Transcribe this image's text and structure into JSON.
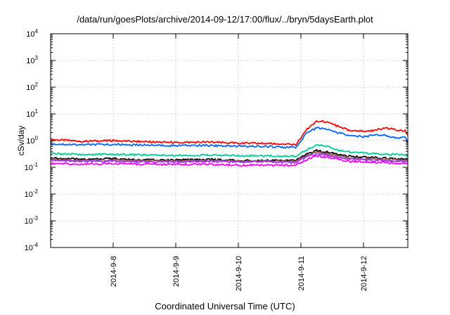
{
  "chart_data": {
    "type": "line",
    "title": "/data/run/goesPlots/archive/2014-09-12/17:00/flux/../bryn/5daysEarth.plot",
    "xlabel": "Coordinated Universal Time (UTC)",
    "ylabel": "cSv/day",
    "yscale": "log",
    "ylim": [
      0.0001,
      10000
    ],
    "y_ticks": [
      {
        "base": "10",
        "exp": "4",
        "value": 10000
      },
      {
        "base": "10",
        "exp": "3",
        "value": 1000
      },
      {
        "base": "10",
        "exp": "2",
        "value": 100
      },
      {
        "base": "10",
        "exp": "1",
        "value": 10
      },
      {
        "base": "10",
        "exp": "0",
        "value": 1
      },
      {
        "base": "10",
        "exp": "-1",
        "value": 0.1
      },
      {
        "base": "10",
        "exp": "-2",
        "value": 0.01
      },
      {
        "base": "10",
        "exp": "-3",
        "value": 0.001
      },
      {
        "base": "10",
        "exp": "-4",
        "value": 0.0001
      }
    ],
    "xlim": [
      "2014-09-07 00:00",
      "2014-09-12 17:00"
    ],
    "x_ticks": [
      {
        "label": "2014-9-8",
        "value": "2014-09-08 00:00"
      },
      {
        "label": "2014-9-9",
        "value": "2014-09-09 00:00"
      },
      {
        "label": "2014-9-10",
        "value": "2014-09-10 00:00"
      },
      {
        "label": "2014-9-11",
        "value": "2014-09-11 00:00"
      },
      {
        "label": "2014-9-12",
        "value": "2014-09-12 00:00"
      }
    ],
    "grid": true,
    "legend": "none",
    "x": [
      "2014-09-07 00:00",
      "2014-09-07 12:00",
      "2014-09-08 00:00",
      "2014-09-08 12:00",
      "2014-09-09 00:00",
      "2014-09-09 12:00",
      "2014-09-10 00:00",
      "2014-09-10 12:00",
      "2014-09-10 22:00",
      "2014-09-11 02:00",
      "2014-09-11 06:00",
      "2014-09-11 10:00",
      "2014-09-11 14:00",
      "2014-09-11 18:00",
      "2014-09-12 00:00",
      "2014-09-12 04:00",
      "2014-09-12 08:00",
      "2014-09-12 12:00",
      "2014-09-12 16:00",
      "2014-09-12 17:00"
    ],
    "series": [
      {
        "color": "#ff0000",
        "values": [
          1.1,
          0.95,
          1.0,
          0.9,
          0.85,
          0.88,
          0.8,
          0.78,
          0.7,
          2.5,
          5.5,
          5.0,
          3.5,
          2.5,
          2.2,
          2.4,
          3.0,
          2.6,
          2.4,
          1.6
        ]
      },
      {
        "color": "#0066ff",
        "values": [
          0.75,
          0.7,
          0.72,
          0.68,
          0.65,
          0.66,
          0.62,
          0.6,
          0.55,
          1.8,
          3.0,
          2.6,
          2.0,
          1.6,
          1.4,
          1.6,
          1.6,
          1.3,
          1.3,
          0.85
        ]
      },
      {
        "color": "#00cc99",
        "values": [
          0.33,
          0.3,
          0.31,
          0.29,
          0.28,
          0.29,
          0.27,
          0.27,
          0.26,
          0.45,
          0.7,
          0.6,
          0.45,
          0.38,
          0.35,
          0.33,
          0.31,
          0.3,
          0.29,
          0.27
        ]
      },
      {
        "color": "#000000",
        "values": [
          0.22,
          0.2,
          0.21,
          0.19,
          0.19,
          0.2,
          0.18,
          0.18,
          0.18,
          0.3,
          0.42,
          0.38,
          0.3,
          0.26,
          0.24,
          0.23,
          0.22,
          0.21,
          0.2,
          0.2
        ]
      },
      {
        "color": "#a05050",
        "values": [
          0.2,
          0.18,
          0.19,
          0.18,
          0.17,
          0.18,
          0.17,
          0.17,
          0.17,
          0.27,
          0.37,
          0.33,
          0.27,
          0.23,
          0.21,
          0.2,
          0.2,
          0.19,
          0.18,
          0.18
        ]
      },
      {
        "color": "#9933ff",
        "values": [
          0.18,
          0.17,
          0.17,
          0.16,
          0.16,
          0.17,
          0.16,
          0.16,
          0.15,
          0.24,
          0.32,
          0.29,
          0.24,
          0.21,
          0.19,
          0.18,
          0.18,
          0.17,
          0.17,
          0.16
        ]
      },
      {
        "color": "#ff00ff",
        "values": [
          0.14,
          0.13,
          0.14,
          0.13,
          0.13,
          0.13,
          0.12,
          0.12,
          0.12,
          0.19,
          0.26,
          0.24,
          0.2,
          0.17,
          0.16,
          0.15,
          0.15,
          0.14,
          0.14,
          0.13
        ]
      }
    ]
  }
}
